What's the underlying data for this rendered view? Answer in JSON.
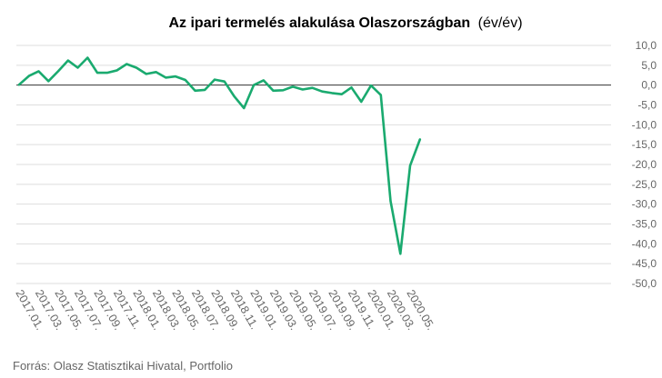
{
  "chart_data": {
    "type": "line",
    "title": "Az ipari termelés alakulása Olaszországban",
    "title_suffix": "(év/év)",
    "source": "Forrás: Olasz Statisztikai Hivatal, Portfolio",
    "y_axis_position": "right",
    "ylim": [
      -50,
      10
    ],
    "y_ticks": [
      "10,0",
      "5,0",
      "0,0",
      "-5,0",
      "-10,0",
      "-15,0",
      "-20,0",
      "-25,0",
      "-30,0",
      "-35,0",
      "-40,0",
      "-45,0",
      "-50,0"
    ],
    "x_tick_labels": [
      "2017.01.",
      "2017.03.",
      "2017.05.",
      "2017.07.",
      "2017.09.",
      "2017.11.",
      "2018.01.",
      "2018.03.",
      "2018.05.",
      "2018.07.",
      "2018.09.",
      "2018.11.",
      "2019.01.",
      "2019.03.",
      "2019.05.",
      "2019.07.",
      "2019.09.",
      "2019.11.",
      "2020.01.",
      "2020.03.",
      "2020.05."
    ],
    "grid": true,
    "series": [
      {
        "color": "#1aaa6f",
        "x": [
          "2017.01.",
          "2017.02.",
          "2017.03.",
          "2017.04.",
          "2017.05.",
          "2017.06.",
          "2017.07.",
          "2017.08.",
          "2017.09.",
          "2017.10.",
          "2017.11.",
          "2017.12.",
          "2018.01.",
          "2018.02.",
          "2018.03.",
          "2018.04.",
          "2018.05.",
          "2018.06.",
          "2018.07.",
          "2018.08.",
          "2018.09.",
          "2018.10.",
          "2018.11.",
          "2018.12.",
          "2019.01.",
          "2019.02.",
          "2019.03.",
          "2019.04.",
          "2019.05.",
          "2019.06.",
          "2019.07.",
          "2019.08.",
          "2019.09.",
          "2019.10.",
          "2019.11.",
          "2019.12.",
          "2020.01.",
          "2020.02.",
          "2020.03.",
          "2020.04.",
          "2020.05.",
          "2020.06."
        ],
        "values": [
          0.1,
          2.3,
          3.5,
          1.0,
          3.5,
          6.2,
          4.4,
          6.9,
          3.1,
          3.1,
          3.7,
          5.3,
          4.4,
          2.8,
          3.3,
          1.9,
          2.2,
          1.3,
          -1.4,
          -1.2,
          1.4,
          0.9,
          -2.8,
          -5.8,
          0.0,
          1.2,
          -1.4,
          -1.3,
          -0.4,
          -1.1,
          -0.7,
          -1.6,
          -2.0,
          -2.3,
          -0.6,
          -4.2,
          -0.1,
          -2.5,
          -29.2,
          -42.5,
          -20.3,
          -13.7
        ]
      }
    ]
  }
}
